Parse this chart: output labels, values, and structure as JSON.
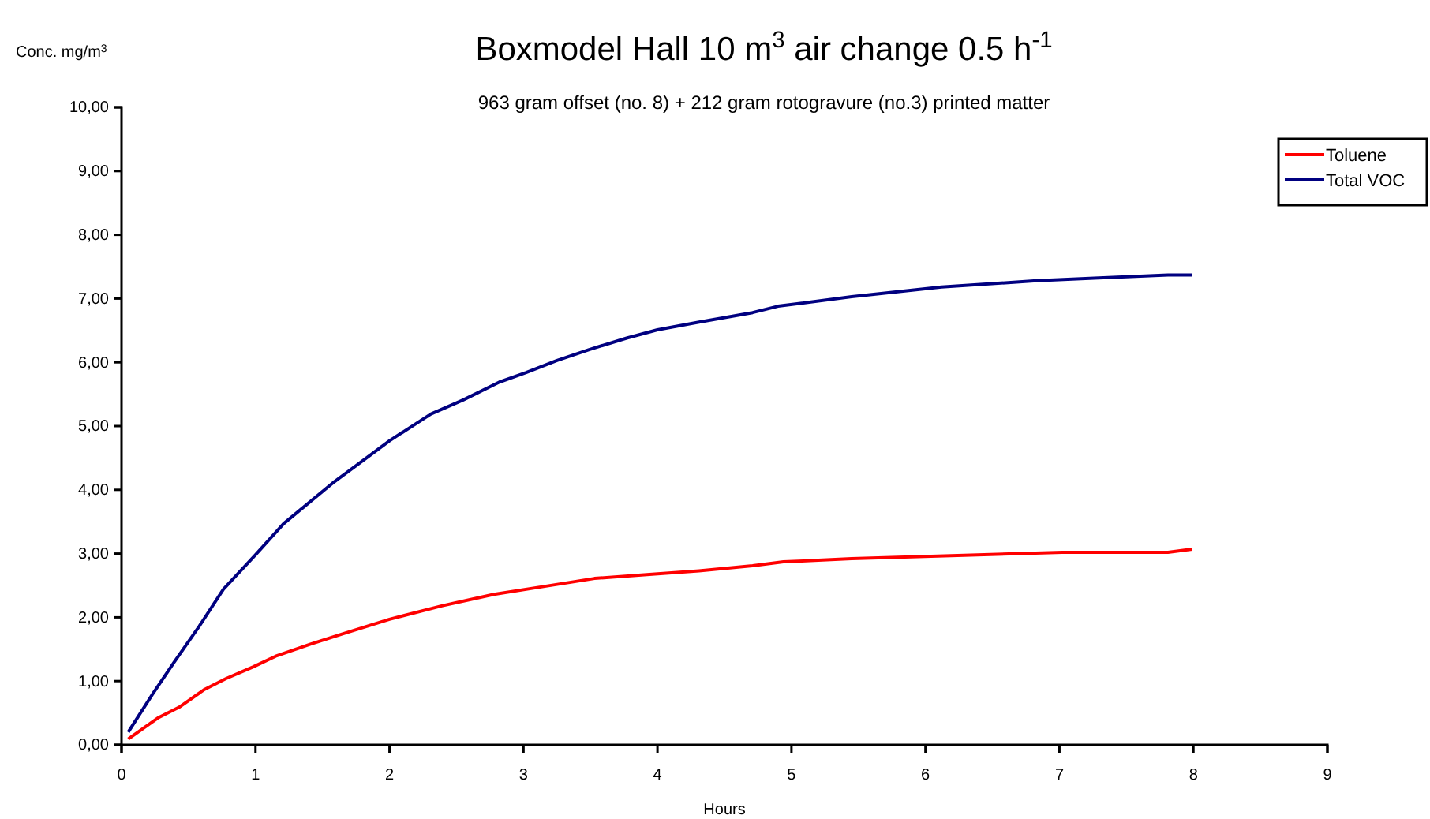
{
  "chart_data": {
    "type": "line",
    "title": "Boxmodel Hall 10 m$^{3}$ air change 0.5 h$^{-1}$",
    "subtitle": "963 gram offset (no. 8) + 212 gram rotogravure (no.3) printed matter",
    "xlabel": "Hours",
    "ylabel": "Conc. mg/m$^{3}$",
    "xlim": [
      0,
      9
    ],
    "xticks": [
      0,
      1,
      2,
      3,
      4,
      5,
      6,
      7,
      8,
      9
    ],
    "ylim": [
      0,
      10
    ],
    "yticks": [
      {
        "value": 0,
        "label": "0,00"
      },
      {
        "value": 1,
        "label": "1,00"
      },
      {
        "value": 2,
        "label": "2,00"
      },
      {
        "value": 3,
        "label": "3,00"
      },
      {
        "value": 4,
        "label": "4,00"
      },
      {
        "value": 5,
        "label": "5,00"
      },
      {
        "value": 6,
        "label": "6,00"
      },
      {
        "value": 7,
        "label": "7,00"
      },
      {
        "value": 8,
        "label": "8,00"
      },
      {
        "value": 9,
        "label": "9,00"
      },
      {
        "value": 10,
        "label": "10,00"
      }
    ],
    "grid": false,
    "legend": "top right",
    "marker": "none",
    "line_style": "solid",
    "series": [
      {
        "name": "Toluene",
        "color": "#ff0000",
        "x": [
          0.05,
          0.27,
          0.43,
          0.62,
          0.78,
          0.98,
          1.15,
          1.41,
          1.65,
          2.0,
          2.39,
          2.78,
          3.14,
          3.53,
          3.92,
          4.31,
          4.71,
          4.94,
          5.45,
          6.24,
          7.02,
          7.81,
          7.99
        ],
        "values": [
          0.09,
          0.42,
          0.59,
          0.87,
          1.04,
          1.22,
          1.39,
          1.58,
          1.74,
          1.97,
          2.18,
          2.36,
          2.48,
          2.61,
          2.67,
          2.73,
          2.81,
          2.87,
          2.92,
          2.97,
          3.02,
          3.02,
          3.07
        ]
      },
      {
        "name": "Total VOC",
        "color": "#000080",
        "x": [
          0.05,
          0.23,
          0.39,
          0.58,
          0.76,
          1.0,
          1.21,
          1.59,
          1.86,
          2.0,
          2.31,
          2.55,
          2.82,
          3.02,
          3.25,
          3.49,
          3.77,
          4.0,
          4.31,
          4.71,
          4.9,
          5.45,
          6.12,
          6.83,
          7.26,
          7.81,
          7.99
        ],
        "values": [
          0.2,
          0.79,
          1.29,
          1.86,
          2.44,
          2.98,
          3.47,
          4.13,
          4.55,
          4.77,
          5.19,
          5.41,
          5.69,
          5.84,
          6.03,
          6.2,
          6.38,
          6.51,
          6.63,
          6.78,
          6.88,
          7.03,
          7.18,
          7.28,
          7.32,
          7.37,
          7.37
        ]
      }
    ]
  }
}
